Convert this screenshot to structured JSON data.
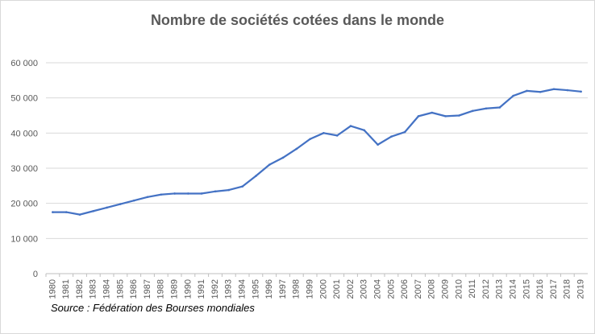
{
  "chart_data": {
    "type": "line",
    "title": "Nombre de sociétés cotées dans le monde",
    "source": "Source : Fédération des Bourses mondiales",
    "x": [
      "1980",
      "1981",
      "1982",
      "1983",
      "1984",
      "1985",
      "1986",
      "1987",
      "1988",
      "1989",
      "1990",
      "1991",
      "1992",
      "1993",
      "1994",
      "1995",
      "1996",
      "1997",
      "1998",
      "1999",
      "2000",
      "2001",
      "2002",
      "2003",
      "2004",
      "2005",
      "2006",
      "2007",
      "2008",
      "2009",
      "2010",
      "2011",
      "2012",
      "2013",
      "2014",
      "2015",
      "2016",
      "2017",
      "2018",
      "2019"
    ],
    "y_ticks": [
      "0",
      "10 000",
      "20 000",
      "30 000",
      "40 000",
      "50 000",
      "60 000"
    ],
    "ylim": [
      0,
      60000
    ],
    "grid": true,
    "legend": "none",
    "line_color": "#4472c4",
    "series": [
      {
        "values": [
          17500,
          17500,
          16800,
          17800,
          18800,
          19800,
          20800,
          21800,
          22500,
          22800,
          22800,
          22800,
          23400,
          23800,
          24800,
          27800,
          31000,
          33000,
          35500,
          38300,
          40000,
          39300,
          42000,
          40800,
          36700,
          39000,
          40300,
          44800,
          45800,
          44800,
          45000,
          46300,
          47000,
          47300,
          50600,
          52000,
          51700,
          52500,
          52200,
          51800
        ]
      }
    ]
  }
}
